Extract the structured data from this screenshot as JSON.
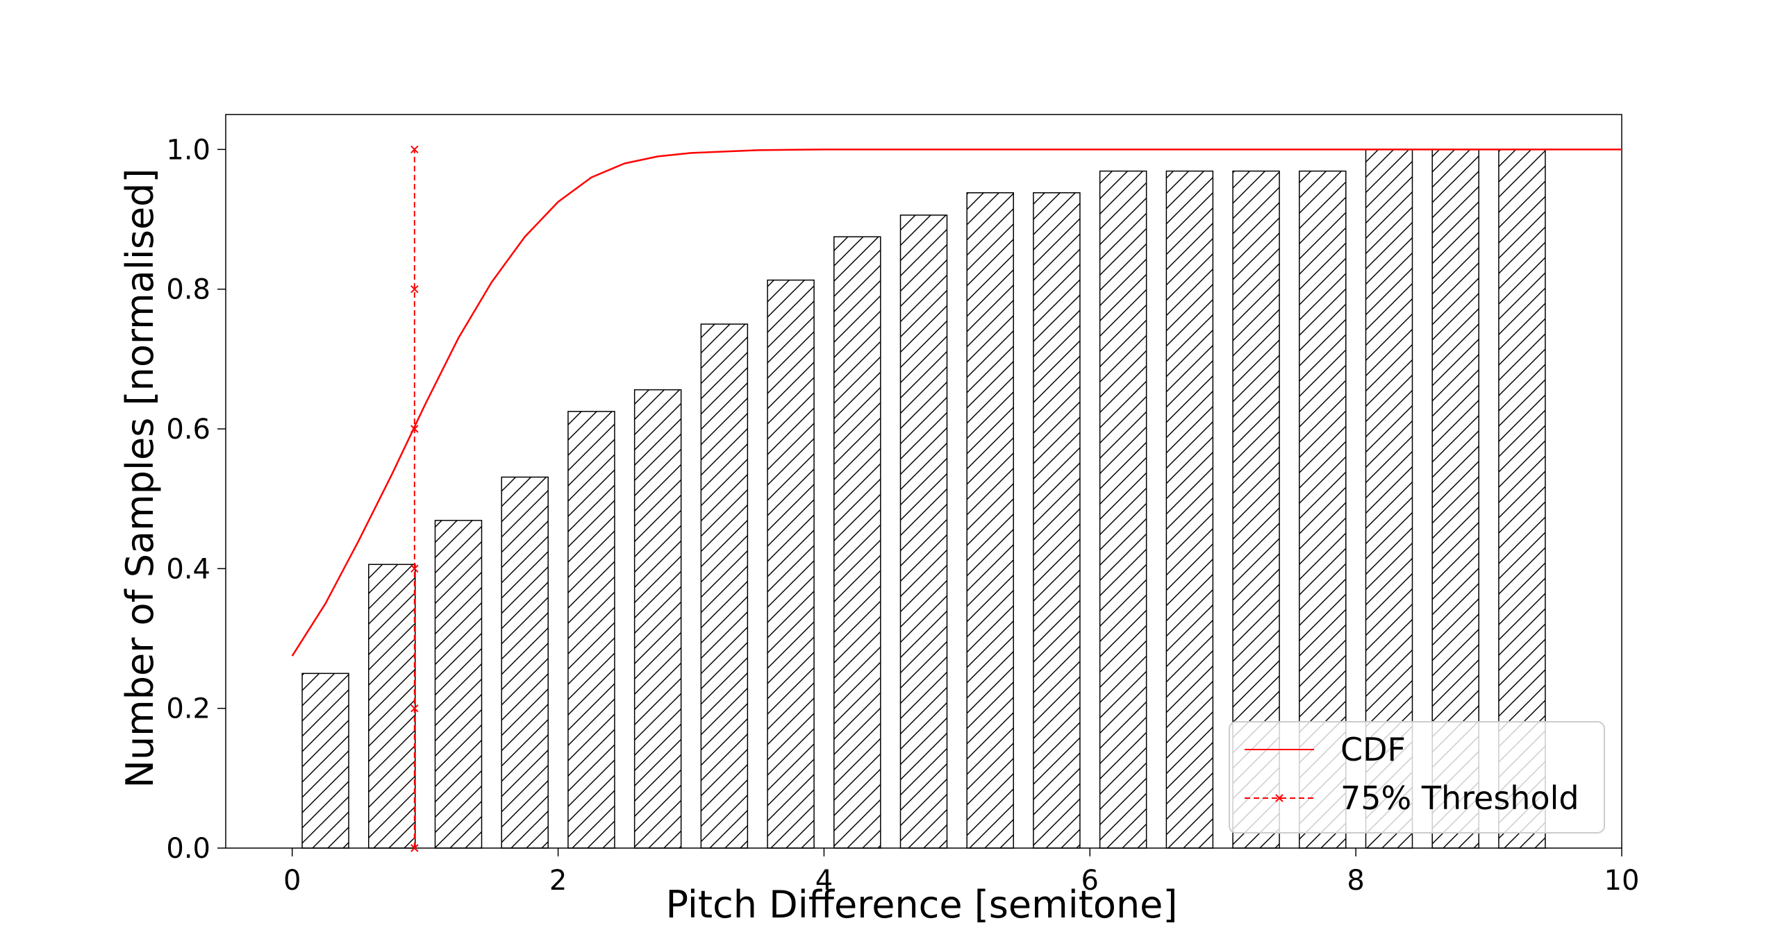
{
  "chart_data": {
    "type": "bar",
    "xlabel": "Pitch Difference [semitone]",
    "ylabel": "Number of Samples [normalised]",
    "xlim": [
      -0.5,
      10
    ],
    "ylim": [
      0,
      1.05
    ],
    "xticks": [
      "0",
      "2",
      "4",
      "6",
      "8",
      "10"
    ],
    "yticks": [
      "0.0",
      "0.2",
      "0.4",
      "0.6",
      "0.8",
      "1.0"
    ],
    "grid": false,
    "legend_position": "lower-right",
    "bars": {
      "x": [
        0.25,
        0.75,
        1.25,
        1.75,
        2.25,
        2.75,
        3.25,
        3.75,
        4.25,
        4.75,
        5.25,
        5.75,
        6.25,
        6.75,
        7.25,
        7.75,
        8.25,
        8.75,
        9.25
      ],
      "values": [
        0.25,
        0.406,
        0.469,
        0.531,
        0.625,
        0.656,
        0.75,
        0.813,
        0.875,
        0.906,
        0.938,
        0.938,
        0.969,
        0.969,
        0.969,
        0.969,
        1.0,
        1.0,
        1.0
      ],
      "fill": "#ffffff",
      "edge_color": "#000000",
      "hatch": "diagonal"
    },
    "series": [
      {
        "name": "CDF",
        "type": "line",
        "color": "#ff0000",
        "x": [
          0,
          0.25,
          0.5,
          0.75,
          1.0,
          1.25,
          1.5,
          1.75,
          2.0,
          2.25,
          2.5,
          2.75,
          3.0,
          3.5,
          4.0,
          5.0,
          6.0,
          8.0,
          10.0
        ],
        "y": [
          0.275,
          0.35,
          0.44,
          0.535,
          0.635,
          0.73,
          0.81,
          0.875,
          0.925,
          0.96,
          0.98,
          0.99,
          0.995,
          0.999,
          1.0,
          1.0,
          1.0,
          1.0,
          1.0
        ]
      },
      {
        "name": "75% Threshold",
        "type": "line",
        "style": "dashed",
        "marker": "x",
        "color": "#ff0000",
        "x": [
          0.92,
          0.92,
          0.92,
          0.92,
          0.92,
          0.92
        ],
        "y": [
          0,
          0.2,
          0.4,
          0.6,
          0.8,
          1.0
        ]
      }
    ]
  }
}
